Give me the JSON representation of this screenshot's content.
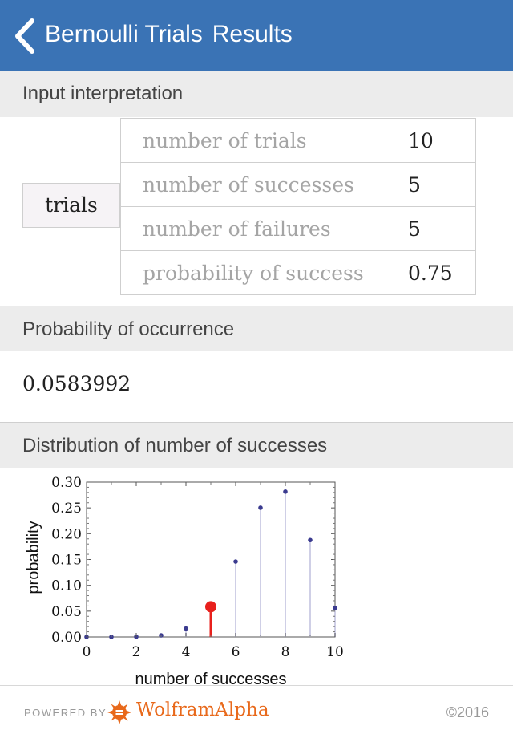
{
  "header": {
    "title_part1": "Bernoulli Trials",
    "title_part2": "Results"
  },
  "pods": {
    "input": "Input interpretation",
    "probability": "Probability of occurrence",
    "distribution": "Distribution of number of successes"
  },
  "input": {
    "box_label": "trials",
    "rows": [
      {
        "label": "number of trials",
        "value": "10"
      },
      {
        "label": "number of successes",
        "value": "5"
      },
      {
        "label": "number of failures",
        "value": "5"
      },
      {
        "label": "probability of success",
        "value": "0.75"
      }
    ]
  },
  "probability_result": "0.0583992",
  "chart_data": {
    "type": "scatter",
    "xlabel": "number of successes",
    "ylabel": "probability",
    "xlim": [
      0,
      10
    ],
    "ylim": [
      0,
      0.3
    ],
    "x_ticks": [
      "0",
      "2",
      "4",
      "6",
      "8",
      "10"
    ],
    "y_ticks": [
      "0.00",
      "0.05",
      "0.10",
      "0.15",
      "0.20",
      "0.25",
      "0.30"
    ],
    "x": [
      0,
      1,
      2,
      3,
      4,
      5,
      6,
      7,
      8,
      9,
      10
    ],
    "values": [
      1e-06,
      3e-05,
      0.0004,
      0.0031,
      0.0162,
      0.0584,
      0.146,
      0.2503,
      0.2816,
      0.1877,
      0.0563
    ],
    "highlight_index": 5,
    "colors": {
      "point": "#3b3b8f",
      "stem": "#cfcfe6",
      "highlight": "#e8201c"
    }
  },
  "footer": {
    "powered_by": "POWERED BY",
    "brand": "WolframAlpha",
    "copyright": "©2016"
  }
}
